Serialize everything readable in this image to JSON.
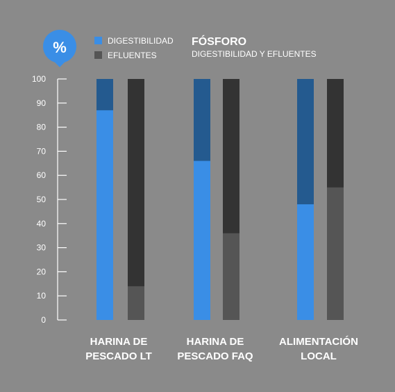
{
  "badge": {
    "symbol": "%",
    "color": "#3a8ee6"
  },
  "legend": [
    {
      "label": "DIGESTIBILIDAD",
      "color": "#3a8ee6"
    },
    {
      "label": "EFLUENTES",
      "color": "#555555"
    }
  ],
  "colors": {
    "background": "#8a8a8a",
    "digestibility": "#3a8ee6",
    "digestibility_dark": "#245a8f",
    "effluent": "#555555",
    "effluent_dark": "#333333",
    "axis": "#ffffff"
  },
  "chart_data": {
    "type": "bar",
    "title": "FÓSFORO",
    "subtitle": "DIGESTIBILIDAD Y EFLUENTES",
    "ylim": [
      0,
      100
    ],
    "yticks": [
      0,
      10,
      20,
      30,
      40,
      50,
      60,
      70,
      80,
      90,
      100
    ],
    "categories": [
      [
        "HARINA DE",
        "PESCADO LT"
      ],
      [
        "HARINA DE",
        "PESCADO FAQ"
      ],
      [
        "ALIMENTACIÓN",
        "LOCAL"
      ]
    ],
    "series": [
      {
        "name": "DIGESTIBILIDAD",
        "values": [
          87,
          66,
          48
        ]
      },
      {
        "name": "EFLUENTES",
        "values": [
          14,
          36,
          55
        ]
      }
    ]
  }
}
